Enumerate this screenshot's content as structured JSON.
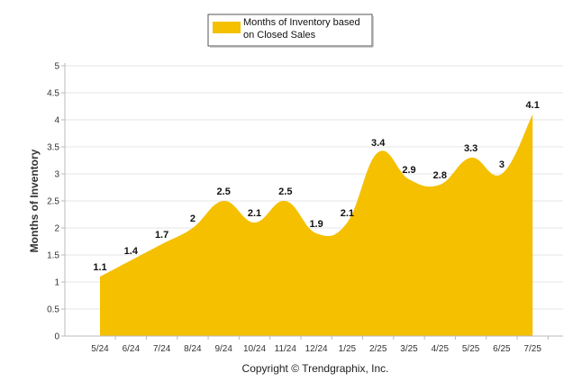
{
  "chart_data": {
    "type": "area",
    "categories": [
      "5/24",
      "6/24",
      "7/24",
      "8/24",
      "9/24",
      "10/24",
      "11/24",
      "12/24",
      "1/25",
      "2/25",
      "3/25",
      "4/25",
      "5/25",
      "6/25",
      "7/25"
    ],
    "series": [
      {
        "name": "Months of Inventory based on Closed Sales",
        "values": [
          1.1,
          1.4,
          1.7,
          2,
          2.5,
          2.1,
          2.5,
          1.9,
          2.1,
          3.4,
          2.9,
          2.8,
          3.3,
          3,
          4.1
        ],
        "labels": [
          "1.1",
          "1.4",
          "1.7",
          "2",
          "2.5",
          "2.1",
          "2.5",
          "1.9",
          "2.1",
          "3.4",
          "2.9",
          "2.8",
          "3.3",
          "3",
          "4.1"
        ]
      }
    ],
    "ylabel": "Months of Inventory",
    "xlabel": "",
    "ylim": [
      0,
      5
    ],
    "yticks": [
      "0",
      "0.5",
      "1",
      "1.5",
      "2",
      "2.5",
      "3",
      "3.5",
      "4",
      "4.5",
      "5"
    ],
    "grid": true,
    "legend_position": "top-center"
  },
  "legend": {
    "line1": "Months of Inventory based",
    "line2": "on Closed Sales"
  },
  "copyright": "Copyright © Trendgraphix, Inc.",
  "colors": {
    "fill": "#F5C000",
    "grid": "#E6E6E6",
    "axis": "#BBBBBB"
  }
}
